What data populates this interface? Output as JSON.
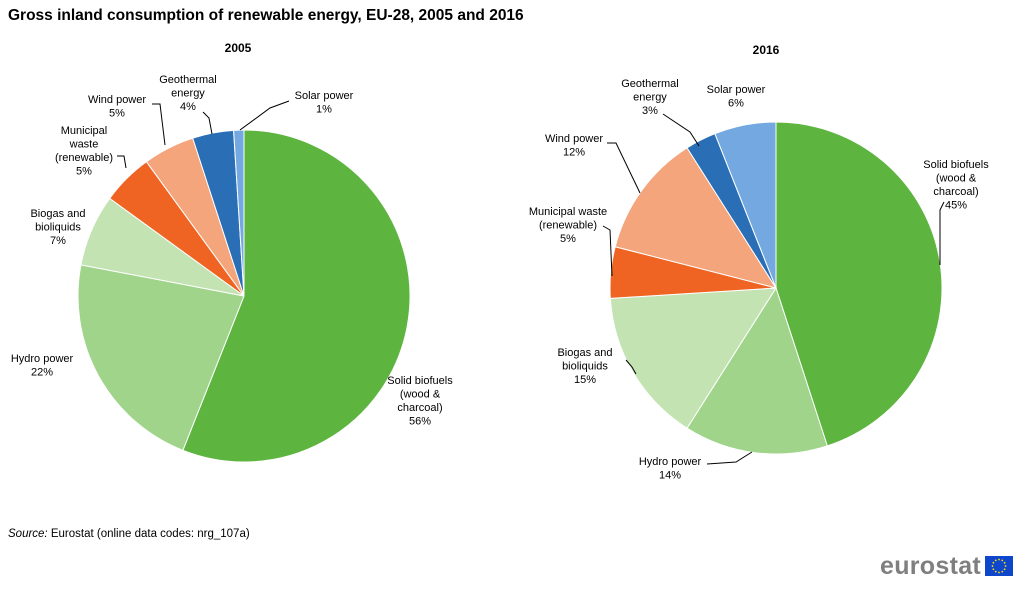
{
  "title": "Gross inland consumption of renewable energy, EU-28, 2005 and 2016",
  "source": {
    "prefix": "Source:",
    "text": "Eurostat (online data codes: nrg_107a)"
  },
  "logo": {
    "text": "eurostat"
  },
  "colors": {
    "solid_biofuels": "#5db43e",
    "hydro": "#9fd48a",
    "biogas": "#c3e3b3",
    "municipal_waste": "#ef6423",
    "wind": "#f4a57b",
    "geothermal": "#2a6eb6",
    "solar": "#73a8e0",
    "eu_flag": "#0e47cb",
    "eu_star": "#ffdd00"
  },
  "chart_data": [
    {
      "type": "pie",
      "title": "2005",
      "slices": [
        {
          "name": "Solid biofuels (wood & charcoal)",
          "value": 56,
          "label_lines": [
            "Solid biofuels",
            "(wood &",
            "charcoal)",
            "56%"
          ],
          "color_key": "solid_biofuels"
        },
        {
          "name": "Hydro power",
          "value": 22,
          "label_lines": [
            "Hydro power",
            "22%"
          ],
          "color_key": "hydro"
        },
        {
          "name": "Biogas and bioliquids",
          "value": 7,
          "label_lines": [
            "Biogas and",
            "bioliquids",
            "7%"
          ],
          "color_key": "biogas"
        },
        {
          "name": "Municipal waste (renewable)",
          "value": 5,
          "label_lines": [
            "Municipal",
            "waste",
            "(renewable)",
            "5%"
          ],
          "color_key": "municipal_waste"
        },
        {
          "name": "Wind power",
          "value": 5,
          "label_lines": [
            "Wind power",
            "5%"
          ],
          "color_key": "wind"
        },
        {
          "name": "Geothermal energy",
          "value": 4,
          "label_lines": [
            "Geothermal",
            "energy",
            "4%"
          ],
          "color_key": "geothermal"
        },
        {
          "name": "Solar power",
          "value": 1,
          "label_lines": [
            "Solar power",
            "1%"
          ],
          "color_key": "solar"
        }
      ]
    },
    {
      "type": "pie",
      "title": "2016",
      "slices": [
        {
          "name": "Solid biofuels (wood & charcoal)",
          "value": 45,
          "label_lines": [
            "Solid biofuels",
            "(wood &",
            "charcoal)",
            "45%"
          ],
          "color_key": "solid_biofuels"
        },
        {
          "name": "Hydro power",
          "value": 14,
          "label_lines": [
            "Hydro power",
            "14%"
          ],
          "color_key": "hydro"
        },
        {
          "name": "Biogas and bioliquids",
          "value": 15,
          "label_lines": [
            "Biogas and",
            "bioliquids",
            "15%"
          ],
          "color_key": "biogas"
        },
        {
          "name": "Municipal waste (renewable)",
          "value": 5,
          "label_lines": [
            "Municipal waste",
            "(renewable)",
            "5%"
          ],
          "color_key": "municipal_waste"
        },
        {
          "name": "Wind power",
          "value": 12,
          "label_lines": [
            "Wind power",
            "12%"
          ],
          "color_key": "wind"
        },
        {
          "name": "Geothermal energy",
          "value": 3,
          "label_lines": [
            "Geothermal",
            "energy",
            "3%"
          ],
          "color_key": "geothermal"
        },
        {
          "name": "Solar power",
          "value": 6,
          "label_lines": [
            "Solar power",
            "6%"
          ],
          "color_key": "solar"
        }
      ]
    }
  ]
}
